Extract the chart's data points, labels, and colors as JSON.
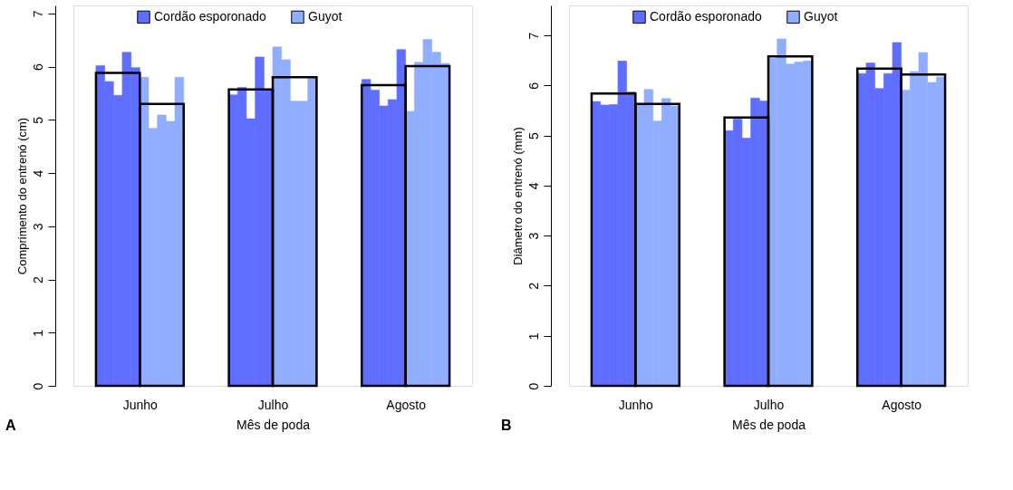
{
  "chart_data": [
    {
      "type": "bar",
      "xlabel": "Mês de poda",
      "ylabel": "Comprimento do entrenó (cm)",
      "categories": [
        "Junho",
        "Julho",
        "Agosto"
      ],
      "ylim": [
        0,
        7.15
      ],
      "yticks": [
        0,
        1,
        2,
        3,
        4,
        5,
        6,
        7
      ],
      "grid": false,
      "legend": "top",
      "annotations": [
        "A"
      ],
      "series": [
        {
          "name": "Cordão esporonado",
          "color": "#5f6eff",
          "values": [
            6.02,
            5.47,
            5.76
          ]
        },
        {
          "color": "#5f6eff",
          "values": [
            5.72,
            5.61,
            5.56
          ]
        },
        {
          "color": "#5f6eff",
          "values": [
            5.46,
            5.02,
            5.26
          ]
        },
        {
          "color": "#5f6eff",
          "values": [
            6.27,
            6.18,
            5.38
          ]
        },
        {
          "color": "#5f6eff",
          "values": [
            5.98,
            5.55,
            6.32
          ]
        },
        {
          "color": "#000000",
          "values": [
            5.88,
            5.57,
            5.65
          ]
        },
        {
          "name": "Guyot",
          "color": "#91adff",
          "values": [
            5.8,
            6.37,
            5.16
          ]
        },
        {
          "color": "#91adff",
          "values": [
            4.84,
            6.13,
            6.08
          ]
        },
        {
          "color": "#91adff",
          "values": [
            5.09,
            5.35,
            6.51
          ]
        },
        {
          "color": "#91adff",
          "values": [
            4.97,
            5.35,
            6.27
          ]
        },
        {
          "color": "#91adff",
          "values": [
            5.8,
            5.78,
            6.06
          ]
        },
        {
          "color": "#000000",
          "values": [
            5.3,
            5.8,
            6.01
          ]
        }
      ]
    },
    {
      "type": "bar",
      "xlabel": "Mês de poda",
      "ylabel": "Diâmetro do entrenó (mm)",
      "categories": [
        "Junho",
        "Julho",
        "Agosto"
      ],
      "ylim": [
        0,
        7.6
      ],
      "yticks": [
        0,
        1,
        2,
        3,
        4,
        5,
        6,
        7
      ],
      "grid": false,
      "legend": "top",
      "annotations": [
        "B"
      ],
      "series": [
        {
          "name": "Cordão esporonado",
          "color": "#5f6eff",
          "values": [
            5.68,
            5.1,
            6.24
          ]
        },
        {
          "color": "#5f6eff",
          "values": [
            5.61,
            5.33,
            6.45
          ]
        },
        {
          "color": "#5f6eff",
          "values": [
            5.62,
            4.95,
            5.94
          ]
        },
        {
          "color": "#5f6eff",
          "values": [
            6.49,
            5.75,
            6.24
          ]
        },
        {
          "color": "#5f6eff",
          "values": [
            5.87,
            5.69,
            6.86
          ]
        },
        {
          "color": "#000000",
          "values": [
            5.84,
            5.36,
            6.34
          ]
        },
        {
          "name": "Guyot",
          "color": "#91adff",
          "values": [
            5.61,
            6.54,
            5.91
          ]
        },
        {
          "color": "#91adff",
          "values": [
            5.92,
            6.93,
            6.28
          ]
        },
        {
          "color": "#91adff",
          "values": [
            5.29,
            6.43,
            6.66
          ]
        },
        {
          "color": "#91adff",
          "values": [
            5.74,
            6.47,
            6.06
          ]
        },
        {
          "color": "#91adff",
          "values": [
            5.59,
            6.49,
            6.17
          ]
        },
        {
          "color": "#000000",
          "values": [
            5.63,
            6.58,
            6.22
          ]
        }
      ]
    }
  ]
}
